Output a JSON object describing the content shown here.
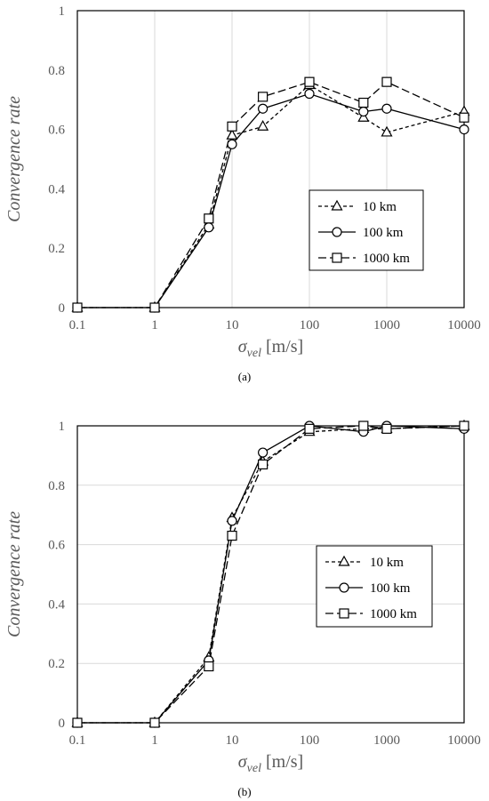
{
  "chart_data": [
    {
      "type": "line",
      "panel_label": "(a)",
      "x": [
        0.1,
        1,
        5,
        10,
        25,
        100,
        500,
        1000,
        10000
      ],
      "x_ticks": [
        "0.1",
        "1",
        "10",
        "100",
        "1000",
        "10000"
      ],
      "y_ticks": [
        "0",
        "0.2",
        "0.4",
        "0.6",
        "0.8",
        "1"
      ],
      "xscale": "log",
      "xlim": [
        0.1,
        10000
      ],
      "ylim": [
        0,
        1
      ],
      "grid": "vertical",
      "legend_position": "lower-right",
      "ylabel": "Convergence rate",
      "xlabel_main": "σ",
      "xlabel_sub": "vel",
      "xlabel_unit": " [m/s]",
      "series": [
        {
          "name": "10 km",
          "marker": "triangle",
          "dash": "short",
          "values": [
            0,
            0,
            0.28,
            0.58,
            0.61,
            0.75,
            0.64,
            0.59,
            0.66
          ]
        },
        {
          "name": "100 km",
          "marker": "circle",
          "dash": "solid",
          "values": [
            0,
            0,
            0.27,
            0.55,
            0.67,
            0.72,
            0.66,
            0.67,
            0.6
          ]
        },
        {
          "name": "1000 km",
          "marker": "square",
          "dash": "long",
          "values": [
            0,
            0,
            0.3,
            0.61,
            0.71,
            0.76,
            0.69,
            0.76,
            0.64
          ]
        }
      ]
    },
    {
      "type": "line",
      "panel_label": "(b)",
      "x": [
        0.1,
        1,
        5,
        10,
        25,
        100,
        500,
        1000,
        10000
      ],
      "x_ticks": [
        "0.1",
        "1",
        "10",
        "100",
        "1000",
        "10000"
      ],
      "y_ticks": [
        "0",
        "0.2",
        "0.4",
        "0.6",
        "0.8",
        "1"
      ],
      "xscale": "log",
      "xlim": [
        0.1,
        10000
      ],
      "ylim": [
        0,
        1
      ],
      "grid": "horizontal",
      "legend_position": "center-right",
      "ylabel": "Convergence rate",
      "xlabel_main": "σ",
      "xlabel_sub": "vel",
      "xlabel_unit": " [m/s]",
      "series": [
        {
          "name": "10 km",
          "marker": "triangle",
          "dash": "short",
          "values": [
            0,
            0,
            0.22,
            0.69,
            0.88,
            0.98,
            0.99,
            0.99,
            1.0
          ]
        },
        {
          "name": "100 km",
          "marker": "circle",
          "dash": "solid",
          "values": [
            0,
            0,
            0.21,
            0.68,
            0.91,
            1.0,
            0.98,
            1.0,
            0.99
          ]
        },
        {
          "name": "1000 km",
          "marker": "square",
          "dash": "long",
          "values": [
            0,
            0,
            0.19,
            0.63,
            0.87,
            0.99,
            1.0,
            0.99,
            1.0
          ]
        }
      ]
    }
  ]
}
